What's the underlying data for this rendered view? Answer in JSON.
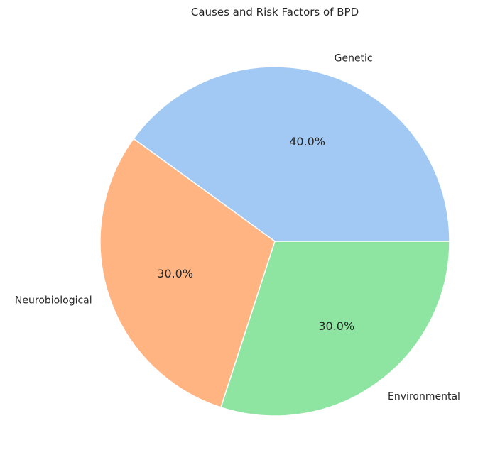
{
  "chart_data": {
    "type": "pie",
    "title": "Causes and Risk Factors of BPD",
    "categories": [
      "Genetic",
      "Neurobiological",
      "Environmental"
    ],
    "values": [
      40,
      30,
      30
    ],
    "value_labels": [
      "40.0%",
      "30.0%",
      "30.0%"
    ],
    "colors": [
      "#a1c9f4",
      "#ffb482",
      "#8de5a1"
    ],
    "start_angle_deg": 0,
    "direction": "counterclockwise",
    "legend": "none"
  }
}
